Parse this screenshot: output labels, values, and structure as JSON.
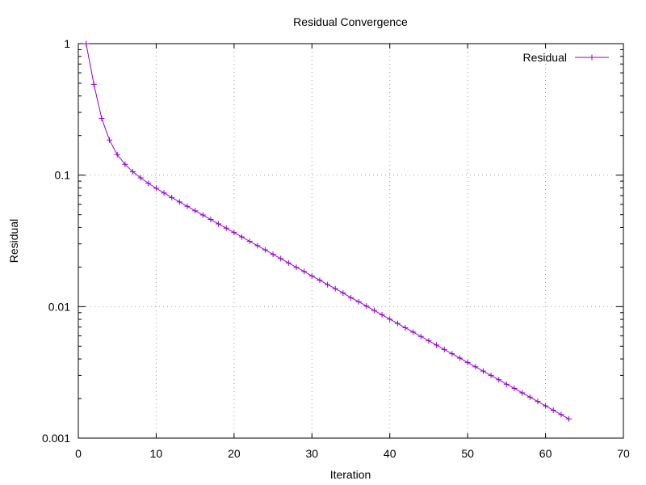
{
  "chart_data": {
    "type": "line",
    "title": "Residual Convergence",
    "xlabel": "Iteration",
    "ylabel": "Residual",
    "xlim": [
      0,
      70
    ],
    "ylim": [
      0.001,
      1
    ],
    "yscale": "log",
    "grid": true,
    "legend_position": "top-right",
    "x_ticks": [
      "0",
      "10",
      "20",
      "30",
      "40",
      "50",
      "60",
      "70"
    ],
    "y_ticks": [
      "0.001",
      "0.01",
      "0.1",
      "1"
    ],
    "series": [
      {
        "name": "Residual",
        "color": "#9400d3",
        "marker": "plus",
        "x": [
          1,
          2,
          3,
          4,
          5,
          6,
          7,
          8,
          9,
          10,
          11,
          12,
          13,
          14,
          15,
          16,
          17,
          18,
          19,
          20,
          21,
          22,
          23,
          24,
          25,
          26,
          27,
          28,
          29,
          30,
          31,
          32,
          33,
          34,
          35,
          36,
          37,
          38,
          39,
          40,
          41,
          42,
          43,
          44,
          45,
          46,
          47,
          48,
          49,
          50,
          51,
          52,
          53,
          54,
          55,
          56,
          57,
          58,
          59,
          60,
          61,
          62,
          63
        ],
        "y": [
          1.0,
          0.49,
          0.27,
          0.185,
          0.143,
          0.121,
          0.106,
          0.0954,
          0.0867,
          0.0795,
          0.0732,
          0.0676,
          0.0625,
          0.0579,
          0.0536,
          0.0497,
          0.046,
          0.0426,
          0.0395,
          0.0366,
          0.0339,
          0.0314,
          0.0291,
          0.027,
          0.025,
          0.0232,
          0.0215,
          0.0199,
          0.0185,
          0.0171,
          0.0159,
          0.0147,
          0.0137,
          0.0127,
          0.0117,
          0.0109,
          0.0101,
          0.00935,
          0.00867,
          0.00803,
          0.00745,
          0.0069,
          0.0064,
          0.00593,
          0.0055,
          0.0051,
          0.00472,
          0.00438,
          0.00406,
          0.00376,
          0.00349,
          0.00323,
          0.003,
          0.00278,
          0.00257,
          0.00239,
          0.00221,
          0.00205,
          0.0019,
          0.00176,
          0.00163,
          0.00151,
          0.0014
        ]
      }
    ]
  }
}
